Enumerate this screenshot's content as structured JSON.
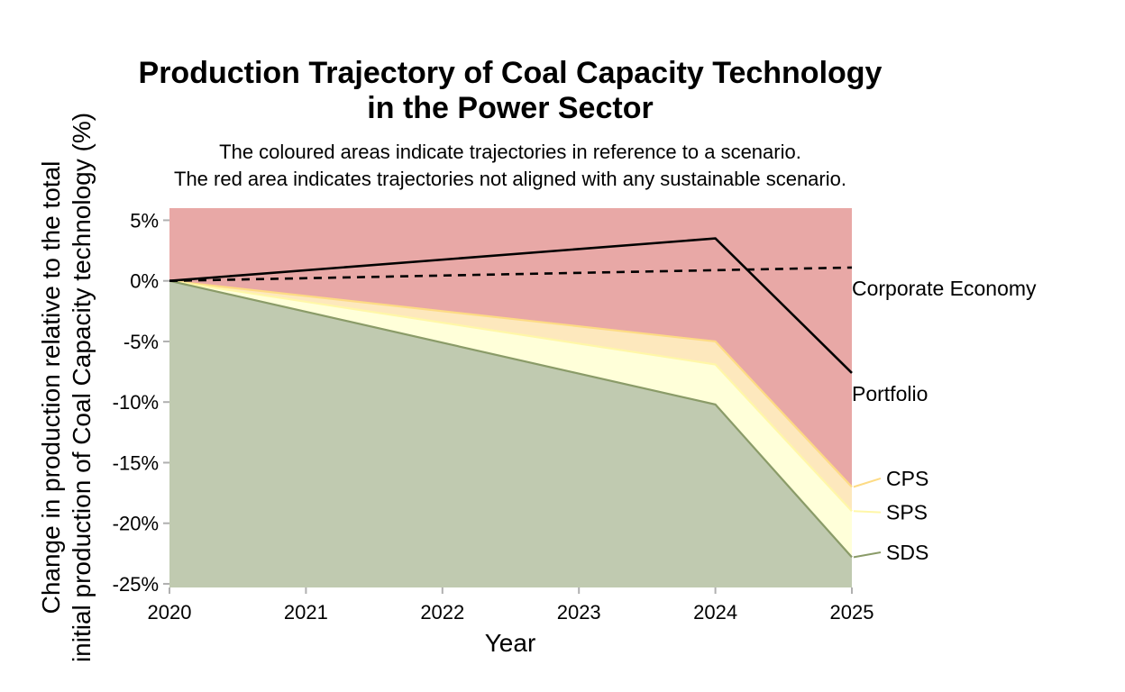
{
  "chart_data": {
    "type": "area",
    "title_lines": [
      "Production Trajectory of Coal Capacity Technology",
      "in the Power Sector"
    ],
    "subtitle_lines": [
      "The coloured areas indicate trajectories in reference to a scenario.",
      "The red area indicates trajectories not aligned with any sustainable scenario."
    ],
    "xlabel": "Year",
    "ylabel_lines": [
      "Change in production relative to the total",
      "initial production of Coal Capacity technology (%)"
    ],
    "x": [
      2020,
      2021,
      2022,
      2023,
      2024,
      2025
    ],
    "x_ticks": [
      "2020",
      "2021",
      "2022",
      "2023",
      "2024",
      "2025"
    ],
    "xlim": [
      2020,
      2025
    ],
    "ylim": [
      -25.3,
      6
    ],
    "y_ticks": [
      5,
      0,
      -5,
      -10,
      -15,
      -20,
      -25
    ],
    "y_tick_labels": [
      "5%",
      "0%",
      "-5%",
      "-10%",
      "-15%",
      "-20%",
      "-25%"
    ],
    "grid": false,
    "bands": [
      {
        "name": "unaligned",
        "color": "#e8a8a6",
        "x": [
          2020,
          2025
        ],
        "upper": [
          6,
          6
        ],
        "lower": [
          -25.3,
          -25.3
        ]
      },
      {
        "name": "CPS band",
        "color": "#fde8bd",
        "x": [
          2020,
          2024,
          2025
        ],
        "upper": [
          0,
          -5.0,
          -17.0
        ],
        "lower": [
          -25.3,
          -25.3,
          -25.3
        ]
      },
      {
        "name": "SPS band",
        "color": "#ffffd9",
        "x": [
          2020,
          2024,
          2025
        ],
        "upper": [
          0,
          -6.9,
          -19.0
        ],
        "lower": [
          -25.3,
          -25.3,
          -25.3
        ]
      },
      {
        "name": "SDS band",
        "color": "#c0cab0",
        "x": [
          2020,
          2024,
          2025
        ],
        "upper": [
          0,
          -10.2,
          -22.8
        ],
        "lower": [
          -25.3,
          -25.3,
          -25.3
        ]
      }
    ],
    "series": [
      {
        "name": "Portfolio",
        "label": "Portfolio",
        "color": "#000000",
        "dash": "solid",
        "x": [
          2020,
          2024,
          2025
        ],
        "values": [
          0,
          3.5,
          -7.6
        ]
      },
      {
        "name": "Corporate Economy",
        "label": "Corporate Economy",
        "color": "#000000",
        "dash": "dashed",
        "x": [
          2020,
          2025
        ],
        "values": [
          0,
          1.1
        ]
      },
      {
        "name": "CPS",
        "label": "CPS",
        "color": "#fddb84",
        "dash": "solid",
        "x": [
          2020,
          2024,
          2025
        ],
        "values": [
          0,
          -5.0,
          -17.0
        ]
      },
      {
        "name": "SPS",
        "label": "SPS",
        "color": "#fff7a8",
        "dash": "solid",
        "x": [
          2020,
          2024,
          2025
        ],
        "values": [
          0,
          -6.9,
          -19.0
        ]
      },
      {
        "name": "SDS",
        "label": "SDS",
        "color": "#8a9b68",
        "dash": "solid",
        "x": [
          2020,
          2024,
          2025
        ],
        "values": [
          0,
          -10.2,
          -22.8
        ]
      }
    ]
  }
}
